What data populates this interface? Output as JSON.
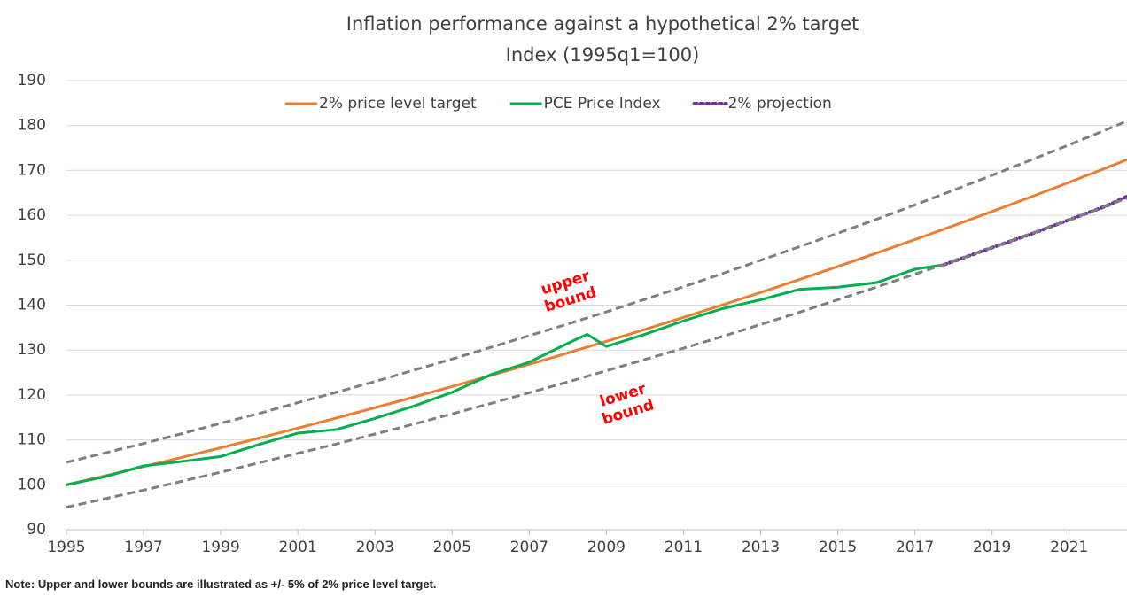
{
  "chart_data": {
    "type": "line",
    "title": "Inflation performance against a hypothetical 2% target",
    "subtitle": "Index (1995q1=100)",
    "note": "Note: Upper and lower bounds are illustrated as +/- 5% of 2% price level target.",
    "xlim": [
      1995,
      2022.5
    ],
    "xticks": [
      1995,
      1997,
      1999,
      2001,
      2003,
      2005,
      2007,
      2009,
      2011,
      2013,
      2015,
      2017,
      2019,
      2021
    ],
    "ylim": [
      90,
      190
    ],
    "yticks": [
      90,
      100,
      110,
      120,
      130,
      140,
      150,
      160,
      170,
      180,
      190
    ],
    "grid": true,
    "legend": "top",
    "annotations": [
      {
        "text": "upper bound",
        "x": 2008,
        "y": 143
      },
      {
        "text": "lower bound",
        "x": 2009.5,
        "y": 118
      }
    ],
    "series": [
      {
        "name": "2% price level target",
        "color": "#ed7d31",
        "style": "solid",
        "x": [
          1995,
          1996,
          1997,
          1998,
          1999,
          2000,
          2001,
          2002,
          2003,
          2004,
          2005,
          2006,
          2007,
          2008,
          2009,
          2010,
          2011,
          2012,
          2013,
          2014,
          2015,
          2016,
          2017,
          2018,
          2019,
          2020,
          2021,
          2022,
          2022.5
        ],
        "values": [
          100,
          102,
          104.04,
          106.12,
          108.24,
          110.41,
          112.62,
          114.87,
          117.17,
          119.51,
          121.9,
          124.34,
          126.82,
          129.36,
          131.95,
          134.59,
          137.28,
          140.02,
          142.82,
          145.68,
          148.59,
          151.57,
          154.6,
          157.69,
          160.84,
          164.06,
          167.34,
          170.69,
          172.4
        ]
      },
      {
        "name": "PCE Price Index",
        "color": "#00b050",
        "style": "solid",
        "x": [
          1995,
          1996,
          1997,
          1998,
          1999,
          2000,
          2001,
          2002,
          2003,
          2004,
          2005,
          2006,
          2007,
          2008,
          2008.5,
          2009,
          2010,
          2011,
          2012,
          2013,
          2014,
          2015,
          2016,
          2017,
          2017.75
        ],
        "values": [
          100,
          101.8,
          104.2,
          105.2,
          106.3,
          109,
          111.5,
          112.3,
          114.8,
          117.5,
          120.6,
          124.5,
          127.3,
          131.5,
          133.5,
          130.8,
          133.5,
          136.5,
          139.2,
          141.2,
          143.5,
          144,
          145,
          148,
          149
        ]
      },
      {
        "name": "2% projection",
        "color": "#7030a0",
        "style": "dotted",
        "x": [
          2017.75,
          2019,
          2020,
          2021,
          2022,
          2022.5
        ],
        "values": [
          149,
          152.8,
          155.8,
          159,
          162.2,
          164.2
        ]
      },
      {
        "color": "#7f7f7f",
        "style": "dashed",
        "x": [
          1995,
          1996,
          1997,
          1998,
          1999,
          2000,
          2001,
          2002,
          2003,
          2004,
          2005,
          2006,
          2007,
          2008,
          2009,
          2010,
          2011,
          2012,
          2013,
          2014,
          2015,
          2016,
          2017,
          2018,
          2019,
          2020,
          2021,
          2022,
          2022.5
        ],
        "values": [
          105,
          107.1,
          109.2,
          111.4,
          113.7,
          115.9,
          118.3,
          120.6,
          123,
          125.5,
          128,
          130.6,
          133.2,
          135.8,
          138.5,
          141.3,
          144.1,
          147,
          150,
          153,
          156,
          159.1,
          162.3,
          165.6,
          168.9,
          172.3,
          175.7,
          179.2,
          181
        ]
      },
      {
        "color": "#7f7f7f",
        "style": "dashed",
        "x": [
          1995,
          1996,
          1997,
          1998,
          1999,
          2000,
          2001,
          2002,
          2003,
          2004,
          2005,
          2006,
          2007,
          2008,
          2009,
          2010,
          2011,
          2012,
          2013,
          2014,
          2015,
          2016,
          2017,
          2018,
          2019,
          2020,
          2021,
          2022,
          2022.5
        ],
        "values": [
          95,
          96.9,
          98.8,
          100.8,
          102.8,
          104.9,
          107,
          109.1,
          111.3,
          113.5,
          115.8,
          118.1,
          120.5,
          122.9,
          125.4,
          127.9,
          130.4,
          133,
          135.7,
          138.4,
          141.2,
          144,
          146.9,
          149.8,
          152.8,
          155.9,
          159,
          162.2,
          163.8
        ]
      }
    ]
  }
}
